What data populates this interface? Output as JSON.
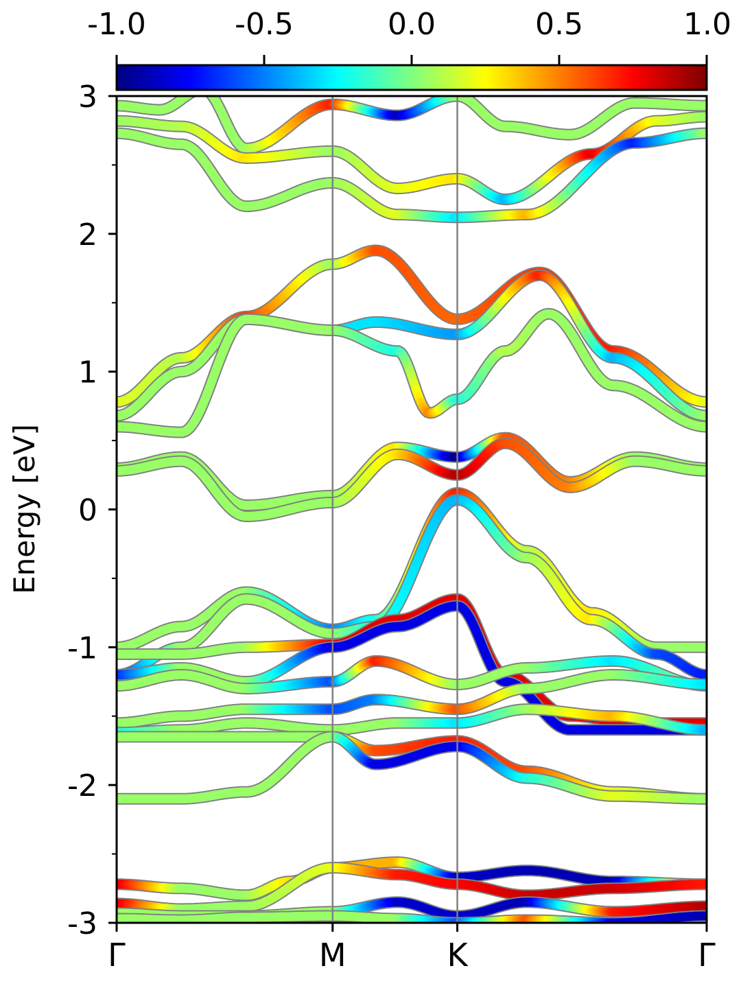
{
  "chart_data": {
    "type": "line",
    "ylabel": "Energy [eV]",
    "ylim": [
      -3,
      3
    ],
    "y_ticks": [
      "3",
      "2",
      "1",
      "0",
      "-1",
      "-2",
      "-3"
    ],
    "y_tick_values": [
      3,
      2,
      1,
      0,
      -1,
      -2,
      -3
    ],
    "x_ticks": [
      "Γ",
      "M",
      "K",
      "Γ"
    ],
    "x_tick_positions": [
      0,
      1.0,
      1.5774,
      2.7321
    ],
    "colorbar": {
      "colormap": "jet",
      "range": [
        -1.0,
        1.0
      ],
      "tick_labels": [
        "-1.0",
        "-0.5",
        "0.0",
        "0.5",
        "1.0"
      ],
      "tick_values": [
        -1.0,
        -0.5,
        0.0,
        0.5,
        1.0
      ]
    },
    "band_outline_color": "#808080",
    "vertical_line_color": "#808080",
    "series": [
      {
        "x": [
          0,
          0.2,
          0.4,
          0.6,
          1.0,
          1.3,
          1.5774,
          1.8,
          2.1,
          2.4,
          2.7321
        ],
        "y": [
          2.93,
          2.9,
          3.05,
          2.62,
          2.94,
          2.86,
          3.0,
          2.78,
          2.72,
          2.95,
          2.93
        ],
        "spin": [
          0.05,
          0.05,
          0.05,
          0.05,
          0.7,
          -0.9,
          0.05,
          0.05,
          0.05,
          0.05,
          0.05
        ]
      },
      {
        "x": [
          0,
          0.3,
          0.6,
          1.0,
          1.3,
          1.5774,
          1.8,
          2.2,
          2.5,
          2.7321
        ],
        "y": [
          2.82,
          2.78,
          2.55,
          2.6,
          2.33,
          2.4,
          2.25,
          2.58,
          2.82,
          2.85
        ],
        "spin": [
          0.05,
          0.1,
          0.3,
          0.05,
          0.2,
          0.3,
          -0.4,
          0.8,
          0.2,
          0.05
        ]
      },
      {
        "x": [
          0,
          0.3,
          0.6,
          1.0,
          1.3,
          1.5774,
          1.9,
          2.4,
          2.7321
        ],
        "y": [
          2.73,
          2.65,
          2.2,
          2.37,
          2.14,
          2.12,
          2.14,
          2.66,
          2.73
        ],
        "spin": [
          0.05,
          0.05,
          0.05,
          0.05,
          0.2,
          -0.3,
          0.4,
          -0.7,
          0.05
        ]
      },
      {
        "x": [
          0,
          0.3,
          0.6,
          1.0,
          1.2,
          1.5774,
          1.96,
          2.3,
          2.7321
        ],
        "y": [
          0.78,
          1.1,
          1.4,
          1.78,
          1.88,
          1.38,
          1.72,
          1.15,
          0.78
        ],
        "spin": [
          0.2,
          0.1,
          0.65,
          0.05,
          0.6,
          0.55,
          0.65,
          0.7,
          0.2
        ]
      },
      {
        "x": [
          0,
          0.3,
          0.6,
          1.0,
          1.2,
          1.5774,
          1.96,
          2.3,
          2.7321
        ],
        "y": [
          0.68,
          1.0,
          1.38,
          1.3,
          1.36,
          1.27,
          1.7,
          1.1,
          0.68
        ],
        "spin": [
          0.05,
          0.05,
          0.05,
          -0.3,
          -0.3,
          -0.45,
          0.7,
          -0.4,
          0.05
        ]
      },
      {
        "x": [
          0,
          0.3,
          0.6,
          1.0,
          1.3,
          1.45,
          1.5774,
          1.8,
          2.0,
          2.3,
          2.7321
        ],
        "y": [
          0.6,
          0.56,
          1.38,
          1.3,
          1.15,
          0.7,
          0.8,
          1.15,
          1.42,
          0.9,
          0.6
        ],
        "spin": [
          0.05,
          0.05,
          0.05,
          0.05,
          -0.2,
          0.5,
          -0.2,
          0.1,
          0.05,
          0.05,
          0.05
        ]
      },
      {
        "x": [
          0,
          0.3,
          0.6,
          1.0,
          1.3,
          1.5774,
          1.8,
          2.1,
          2.4,
          2.7321
        ],
        "y": [
          0.3,
          0.38,
          0.03,
          0.1,
          0.45,
          0.38,
          0.52,
          0.2,
          0.38,
          0.3
        ],
        "spin": [
          0.05,
          0.05,
          0.05,
          0.05,
          0.3,
          -1.0,
          0.6,
          0.5,
          0.05,
          0.05
        ]
      },
      {
        "x": [
          0,
          0.3,
          0.6,
          1.0,
          1.3,
          1.5774,
          1.8,
          2.1,
          2.4,
          2.7321
        ],
        "y": [
          0.28,
          0.35,
          -0.05,
          0.05,
          0.4,
          0.25,
          0.48,
          0.16,
          0.35,
          0.28
        ],
        "spin": [
          0.05,
          0.05,
          0.05,
          0.05,
          0.3,
          0.9,
          0.6,
          0.5,
          0.05,
          0.05
        ]
      },
      {
        "x": [
          0,
          0.3,
          0.6,
          1.0,
          1.2,
          1.5774,
          1.9,
          2.2,
          2.5,
          2.7321
        ],
        "y": [
          -1.0,
          -0.85,
          -0.6,
          -0.87,
          -0.8,
          0.12,
          -0.3,
          -0.75,
          -1.0,
          -1.0
        ],
        "spin": [
          0.05,
          0.05,
          0.05,
          -0.5,
          -0.2,
          0.7,
          0.1,
          0.3,
          0.05,
          0.05
        ]
      },
      {
        "x": [
          0,
          0.3,
          0.6,
          1.0,
          1.2,
          1.5774,
          1.9,
          2.2,
          2.5,
          2.7321
        ],
        "y": [
          -1.2,
          -1.0,
          -0.65,
          -0.9,
          -0.85,
          0.07,
          -0.35,
          -0.8,
          -1.05,
          -1.2
        ],
        "spin": [
          -0.7,
          0.05,
          0.05,
          0.05,
          -0.2,
          -0.4,
          0.05,
          0.3,
          -0.6,
          -0.7
        ]
      },
      {
        "x": [
          0,
          0.3,
          0.6,
          1.0,
          1.3,
          1.5774,
          1.8,
          2.1,
          2.4,
          2.7321
        ],
        "y": [
          -1.05,
          -1.05,
          -1.0,
          -0.98,
          -0.8,
          -0.65,
          -1.2,
          -1.5,
          -1.55,
          -1.55
        ],
        "spin": [
          0.05,
          0.05,
          0.05,
          0.8,
          0.8,
          0.8,
          0.8,
          0.8,
          0.8,
          0.8
        ]
      },
      {
        "x": [
          0,
          0.3,
          0.6,
          1.0,
          1.3,
          1.5774,
          1.8,
          2.1,
          2.4,
          2.7321
        ],
        "y": [
          -1.2,
          -1.15,
          -1.25,
          -1.0,
          -0.85,
          -0.7,
          -1.25,
          -1.6,
          -1.6,
          -1.6
        ],
        "spin": [
          -0.7,
          0.05,
          0.05,
          -0.8,
          -0.8,
          -0.8,
          -0.8,
          -0.8,
          -0.8,
          -0.8
        ]
      },
      {
        "x": [
          0,
          0.3,
          0.6,
          1.0,
          1.2,
          1.5774,
          1.9,
          2.3,
          2.7321
        ],
        "y": [
          -1.28,
          -1.2,
          -1.3,
          -1.25,
          -1.1,
          -1.27,
          -1.15,
          -1.1,
          -1.28
        ],
        "spin": [
          0.05,
          0.05,
          0.05,
          -0.6,
          0.7,
          0.05,
          0.05,
          -0.3,
          0.05
        ]
      },
      {
        "x": [
          0,
          0.3,
          0.6,
          1.0,
          1.2,
          1.5774,
          1.9,
          2.3,
          2.7321
        ],
        "y": [
          -1.55,
          -1.5,
          -1.45,
          -1.45,
          -1.38,
          -1.45,
          -1.3,
          -1.2,
          -1.27
        ],
        "spin": [
          0.05,
          0.05,
          0.05,
          -0.6,
          -0.5,
          0.6,
          0.05,
          0.05,
          -0.3
        ]
      },
      {
        "x": [
          0,
          0.3,
          0.6,
          1.0,
          1.3,
          1.5774,
          1.9,
          2.3,
          2.7321
        ],
        "y": [
          -1.62,
          -1.6,
          -1.55,
          -1.6,
          -1.55,
          -1.55,
          -1.45,
          -1.5,
          -1.6
        ],
        "spin": [
          -0.2,
          0.05,
          0.05,
          0.05,
          0.05,
          -0.3,
          0.05,
          0.4,
          -0.4
        ]
      },
      {
        "x": [
          0,
          0.3,
          0.6,
          1.0,
          1.2,
          1.5774,
          1.9,
          2.3,
          2.7321
        ],
        "y": [
          -1.65,
          -1.65,
          -1.65,
          -1.65,
          -1.75,
          -1.68,
          -1.9,
          -2.05,
          -2.1
        ],
        "spin": [
          0.05,
          0.05,
          0.05,
          0.05,
          0.6,
          0.7,
          0.6,
          0.2,
          0.05
        ]
      },
      {
        "x": [
          0,
          0.3,
          0.6,
          1.0,
          1.2,
          1.5774,
          1.9,
          2.3,
          2.7321
        ],
        "y": [
          -2.1,
          -2.1,
          -2.05,
          -1.65,
          -1.85,
          -1.72,
          -1.95,
          -2.08,
          -2.1
        ],
        "spin": [
          0.05,
          0.05,
          0.05,
          0.05,
          -0.8,
          -0.8,
          -0.2,
          0.2,
          0.05
        ]
      },
      {
        "x": [
          0,
          0.3,
          0.6,
          0.8,
          1.0,
          1.3,
          1.5774,
          1.9,
          2.3,
          2.7321
        ],
        "y": [
          -2.72,
          -2.75,
          -2.8,
          -2.7,
          -2.6,
          -2.56,
          -2.67,
          -2.62,
          -2.7,
          -2.72
        ],
        "spin": [
          0.85,
          0.05,
          0.05,
          0.3,
          0.4,
          0.4,
          -0.85,
          -0.9,
          -0.9,
          0.7
        ]
      },
      {
        "x": [
          0,
          0.3,
          0.6,
          1.0,
          1.3,
          1.5774,
          1.9,
          2.3,
          2.7321
        ],
        "y": [
          -2.86,
          -2.9,
          -2.88,
          -2.6,
          -2.65,
          -2.72,
          -2.8,
          -2.75,
          -2.72
        ],
        "spin": [
          0.85,
          0.05,
          0.05,
          0.2,
          0.7,
          0.75,
          0.85,
          0.85,
          0.7
        ]
      },
      {
        "x": [
          0,
          0.3,
          0.6,
          1.0,
          1.3,
          1.5774,
          1.9,
          2.3,
          2.7321
        ],
        "y": [
          -2.93,
          -2.95,
          -2.95,
          -2.92,
          -2.85,
          -2.95,
          -2.85,
          -2.92,
          -2.88
        ],
        "spin": [
          0.05,
          0.05,
          0.05,
          0.05,
          -0.85,
          -0.85,
          -0.9,
          0.7,
          0.9
        ]
      },
      {
        "x": [
          0,
          0.3,
          0.6,
          1.0,
          1.3,
          1.5774,
          1.9,
          2.3,
          2.7321
        ],
        "y": [
          -2.97,
          -2.98,
          -2.96,
          -2.95,
          -2.97,
          -3.0,
          -2.98,
          -3.0,
          -2.95
        ],
        "spin": [
          0.05,
          0.05,
          0.05,
          0.05,
          0.05,
          -0.6,
          0.6,
          -0.8,
          -0.9
        ]
      }
    ]
  }
}
